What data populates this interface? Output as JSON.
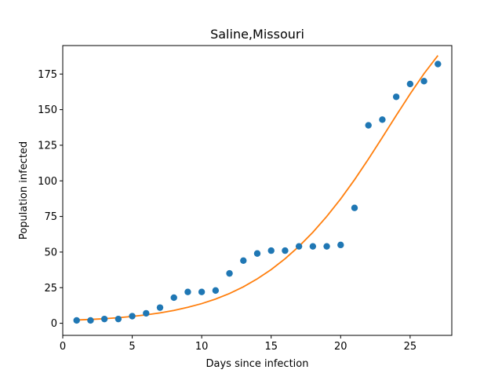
{
  "chart_data": {
    "type": "scatter",
    "title": "Saline,Missouri",
    "xlabel": "Days since infection",
    "ylabel": "Population infected",
    "xlim": [
      0.0,
      28.0
    ],
    "ylim": [
      -8.5,
      195.0
    ],
    "x_ticks": [
      0,
      5,
      10,
      15,
      20,
      25
    ],
    "y_ticks": [
      0,
      25,
      50,
      75,
      100,
      125,
      150,
      175
    ],
    "grid": false,
    "series": [
      {
        "kind": "scatter",
        "color": "#1f77b4",
        "x": [
          1,
          2,
          3,
          4,
          5,
          6,
          7,
          8,
          9,
          10,
          11,
          12,
          13,
          14,
          15,
          16,
          17,
          18,
          19,
          20,
          21,
          22,
          23,
          24,
          25,
          26,
          27
        ],
        "y": [
          2,
          2,
          3,
          3,
          5,
          7,
          11,
          18,
          22,
          22,
          23,
          35,
          44,
          49,
          51,
          51,
          54,
          54,
          54,
          55,
          81,
          139,
          143,
          159,
          168,
          170,
          182
        ]
      },
      {
        "kind": "line",
        "color": "#ff7f0e",
        "x": [
          1,
          2,
          3,
          4,
          5,
          6,
          7,
          8,
          9,
          10,
          11,
          12,
          13,
          14,
          15,
          16,
          17,
          18,
          19,
          20,
          21,
          22,
          23,
          24,
          25,
          26,
          27
        ],
        "y": [
          2.3,
          2.7,
          3.2,
          3.9,
          4.8,
          5.9,
          7.3,
          9.0,
          11.2,
          13.8,
          17.0,
          20.9,
          25.6,
          31.2,
          37.7,
          45.3,
          54.0,
          63.9,
          75.0,
          87.3,
          100.8,
          115.3,
          130.5,
          145.9,
          161.0,
          175.3,
          188.0
        ]
      }
    ]
  }
}
